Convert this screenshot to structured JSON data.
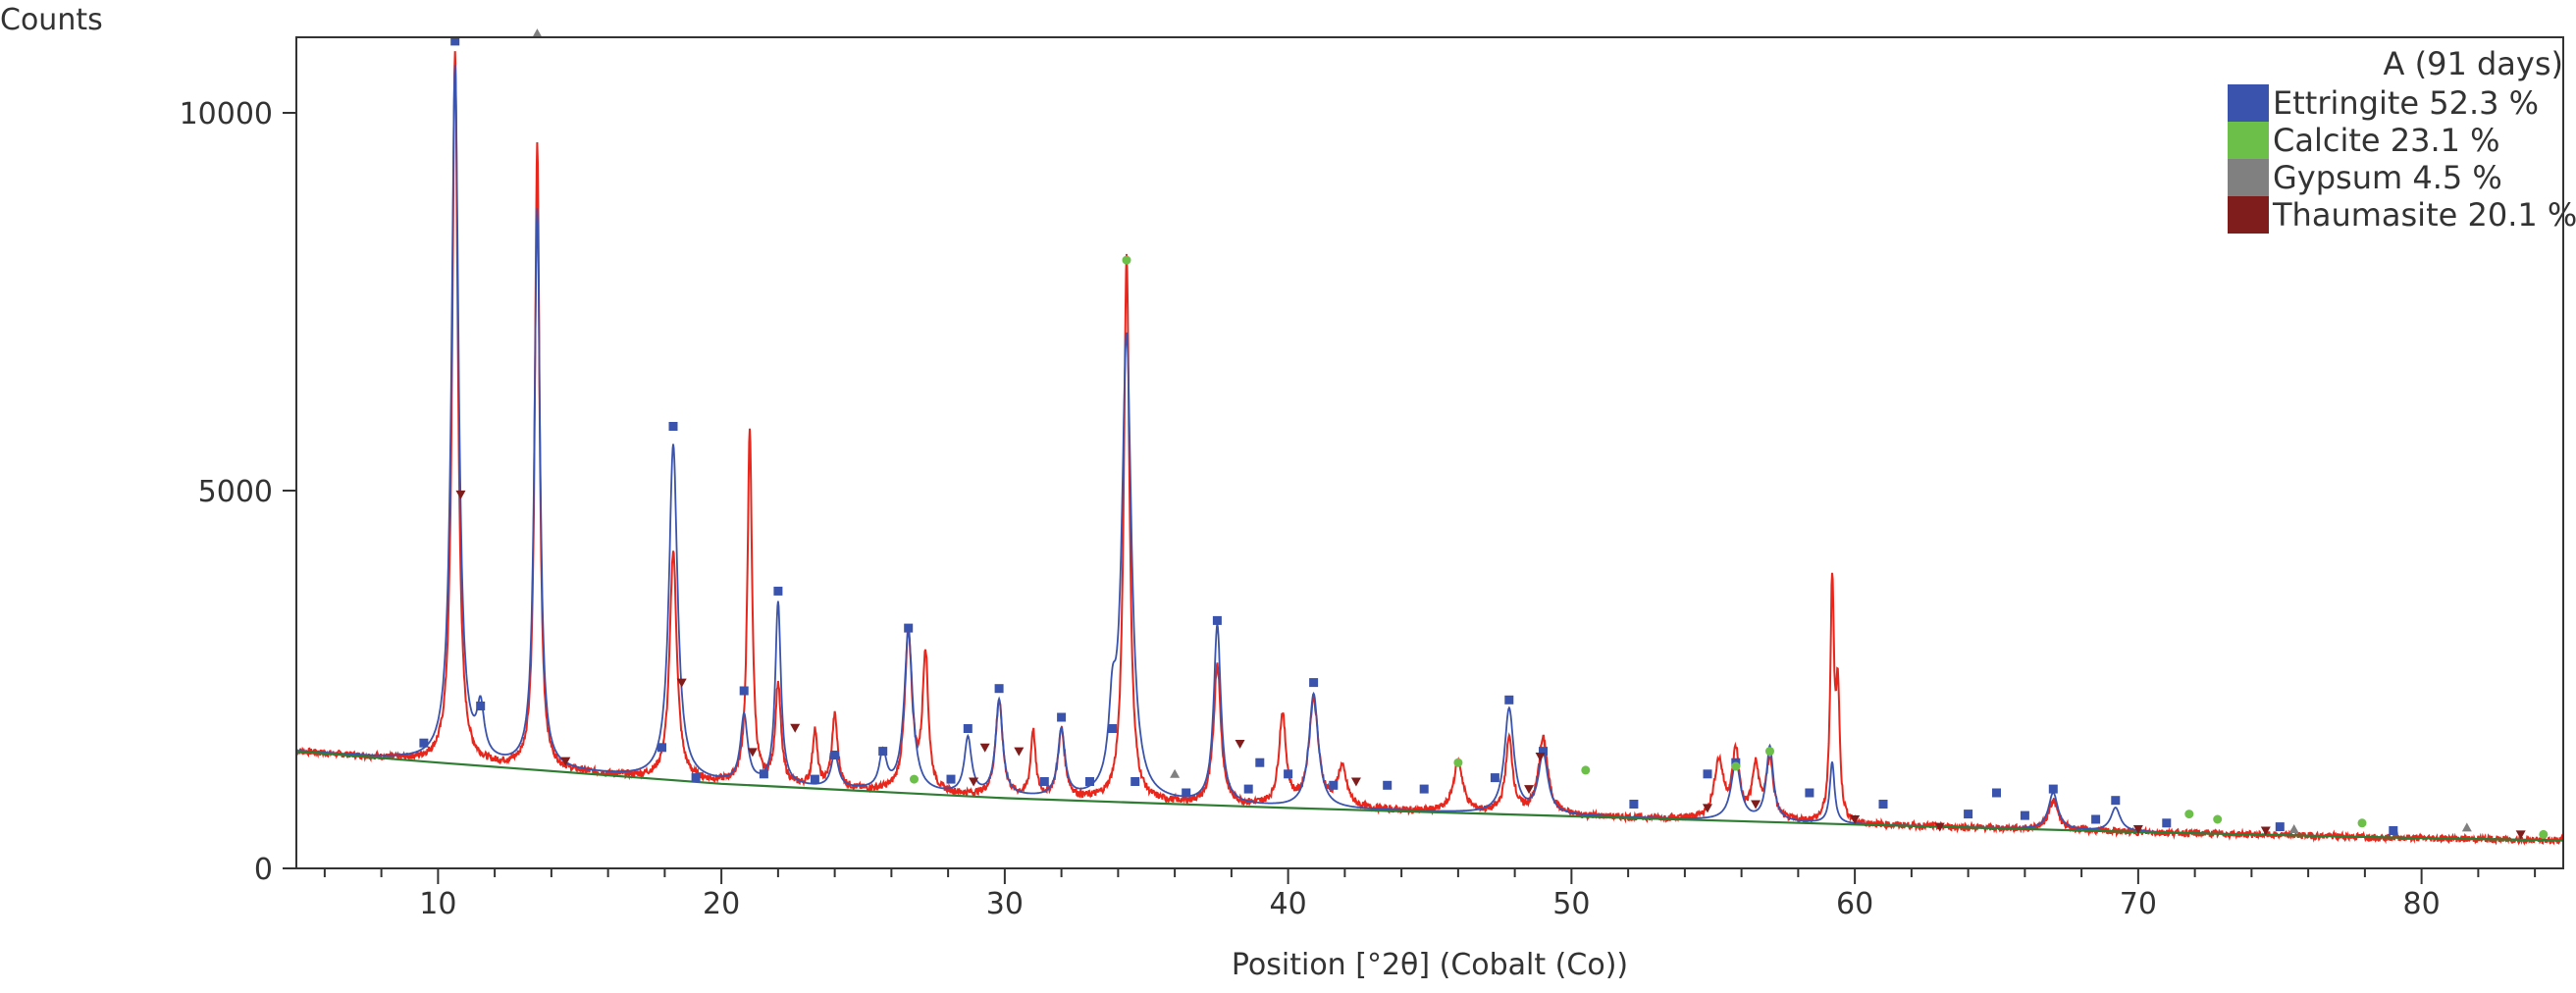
{
  "chart_data": {
    "type": "line",
    "title": "",
    "xlabel": "Position [°2θ] (Cobalt (Co))",
    "ylabel": "Counts",
    "xlim": [
      5,
      85
    ],
    "ylim": [
      0,
      11000
    ],
    "x_ticks": [
      10,
      20,
      30,
      40,
      50,
      60,
      70,
      80
    ],
    "x_tick_labels": [
      "10",
      "20",
      "30",
      "40",
      "50",
      "60",
      "70",
      "80"
    ],
    "y_ticks": [
      0,
      5000,
      10000
    ],
    "y_tick_labels": [
      "0",
      "5000",
      "10000"
    ],
    "grid": false,
    "legend": {
      "title": "A (91 days)",
      "placement": "top-right",
      "entries": [
        {
          "label": "Ettringite 52.3 %",
          "color": "#3a53ad"
        },
        {
          "label": "Calcite 23.1 %",
          "color": "#6cc04a"
        },
        {
          "label": "Gypsum 4.5 %",
          "color": "#808080"
        },
        {
          "label": "Thaumasite 20.1 %",
          "color": "#7f1d1d"
        }
      ]
    },
    "background": {
      "color": "#2e7d32",
      "points": [
        [
          5,
          1550
        ],
        [
          10,
          1400
        ],
        [
          20,
          1120
        ],
        [
          30,
          930
        ],
        [
          40,
          800
        ],
        [
          50,
          690
        ],
        [
          60,
          580
        ],
        [
          70,
          480
        ],
        [
          80,
          400
        ],
        [
          85,
          370
        ]
      ]
    },
    "observed": {
      "color": "#e8261c",
      "peaks": [
        [
          10.6,
          10800,
          0.12
        ],
        [
          13.5,
          9600,
          0.1
        ],
        [
          18.3,
          4200,
          0.15
        ],
        [
          21.0,
          5750,
          0.1
        ],
        [
          22.0,
          2400,
          0.12
        ],
        [
          23.3,
          1800,
          0.1
        ],
        [
          24.0,
          2000,
          0.12
        ],
        [
          26.6,
          3100,
          0.15
        ],
        [
          27.2,
          2800,
          0.12
        ],
        [
          29.8,
          2200,
          0.15
        ],
        [
          31.0,
          1800,
          0.1
        ],
        [
          32.0,
          1800,
          0.15
        ],
        [
          34.3,
          8100,
          0.12
        ],
        [
          37.5,
          2700,
          0.15
        ],
        [
          39.8,
          2000,
          0.15
        ],
        [
          40.9,
          2200,
          0.2
        ],
        [
          41.9,
          1300,
          0.2
        ],
        [
          46.0,
          1400,
          0.2
        ],
        [
          47.8,
          1700,
          0.15
        ],
        [
          49.0,
          1700,
          0.2
        ],
        [
          55.2,
          1400,
          0.2
        ],
        [
          55.8,
          1500,
          0.15
        ],
        [
          56.5,
          1300,
          0.15
        ],
        [
          57.0,
          1400,
          0.15
        ],
        [
          59.2,
          3700,
          0.08
        ],
        [
          59.4,
          2200,
          0.08
        ],
        [
          67.0,
          900,
          0.2
        ]
      ]
    },
    "calculated": {
      "color": "#3a53ad",
      "peaks": [
        [
          10.6,
          10600,
          0.15
        ],
        [
          11.5,
          2000,
          0.15
        ],
        [
          13.5,
          8700,
          0.12
        ],
        [
          18.3,
          5600,
          0.18
        ],
        [
          20.8,
          2000,
          0.15
        ],
        [
          22.0,
          3500,
          0.12
        ],
        [
          24.0,
          1500,
          0.15
        ],
        [
          25.7,
          1500,
          0.15
        ],
        [
          26.6,
          3100,
          0.18
        ],
        [
          28.7,
          1700,
          0.15
        ],
        [
          29.8,
          2200,
          0.15
        ],
        [
          32.0,
          1800,
          0.15
        ],
        [
          33.8,
          1800,
          0.15
        ],
        [
          34.3,
          7000,
          0.2
        ],
        [
          37.5,
          3200,
          0.15
        ],
        [
          40.9,
          2300,
          0.2
        ],
        [
          47.8,
          2100,
          0.2
        ],
        [
          49.0,
          1500,
          0.2
        ],
        [
          55.8,
          1400,
          0.2
        ],
        [
          57.0,
          1600,
          0.15
        ],
        [
          59.2,
          1400,
          0.1
        ],
        [
          67.0,
          1000,
          0.2
        ],
        [
          69.2,
          800,
          0.2
        ]
      ]
    },
    "markers": {
      "ettringite": [
        [
          9.5,
          1660
        ],
        [
          10.6,
          10950
        ],
        [
          11.5,
          2150
        ],
        [
          17.9,
          1600
        ],
        [
          18.3,
          5850
        ],
        [
          19.1,
          1200
        ],
        [
          20.8,
          2350
        ],
        [
          21.5,
          1250
        ],
        [
          22.0,
          3670
        ],
        [
          23.3,
          1180
        ],
        [
          24.0,
          1500
        ],
        [
          25.7,
          1550
        ],
        [
          26.6,
          3180
        ],
        [
          28.1,
          1180
        ],
        [
          28.7,
          1850
        ],
        [
          29.8,
          2380
        ],
        [
          31.4,
          1150
        ],
        [
          32.0,
          2000
        ],
        [
          33.0,
          1150
        ],
        [
          33.8,
          1850
        ],
        [
          34.6,
          1150
        ],
        [
          36.4,
          1000
        ],
        [
          37.5,
          3280
        ],
        [
          38.6,
          1050
        ],
        [
          39.0,
          1400
        ],
        [
          40.0,
          1250
        ],
        [
          40.9,
          2460
        ],
        [
          41.6,
          1100
        ],
        [
          43.5,
          1100
        ],
        [
          44.8,
          1050
        ],
        [
          47.3,
          1200
        ],
        [
          47.8,
          2230
        ],
        [
          49.0,
          1550
        ],
        [
          52.2,
          850
        ],
        [
          54.8,
          1250
        ],
        [
          55.8,
          1400
        ],
        [
          58.4,
          1000
        ],
        [
          61.0,
          850
        ],
        [
          64.0,
          720
        ],
        [
          65.0,
          1000
        ],
        [
          66.0,
          700
        ],
        [
          67.0,
          1050
        ],
        [
          68.5,
          650
        ],
        [
          69.2,
          900
        ],
        [
          71.0,
          600
        ],
        [
          75.0,
          550
        ],
        [
          79.0,
          500
        ]
      ],
      "calcite": [
        [
          26.8,
          1180
        ],
        [
          34.3,
          8050
        ],
        [
          46.0,
          1400
        ],
        [
          50.5,
          1300
        ],
        [
          55.8,
          1350
        ],
        [
          57.0,
          1550
        ],
        [
          71.8,
          720
        ],
        [
          72.8,
          650
        ],
        [
          77.9,
          600
        ],
        [
          84.3,
          450
        ]
      ],
      "gypsum": [
        [
          13.5,
          11050
        ],
        [
          36.0,
          1250
        ],
        [
          75.5,
          520
        ],
        [
          81.6,
          540
        ]
      ],
      "thaumasite": [
        [
          10.8,
          4950
        ],
        [
          14.5,
          1420
        ],
        [
          18.6,
          2460
        ],
        [
          21.1,
          1540
        ],
        [
          22.6,
          1860
        ],
        [
          28.9,
          1150
        ],
        [
          29.3,
          1600
        ],
        [
          30.5,
          1550
        ],
        [
          38.3,
          1650
        ],
        [
          42.4,
          1150
        ],
        [
          48.5,
          1050
        ],
        [
          48.9,
          1480
        ],
        [
          54.8,
          800
        ],
        [
          56.5,
          850
        ],
        [
          60.0,
          650
        ],
        [
          63.0,
          550
        ],
        [
          70.0,
          520
        ],
        [
          74.5,
          500
        ],
        [
          83.5,
          450
        ]
      ]
    }
  }
}
